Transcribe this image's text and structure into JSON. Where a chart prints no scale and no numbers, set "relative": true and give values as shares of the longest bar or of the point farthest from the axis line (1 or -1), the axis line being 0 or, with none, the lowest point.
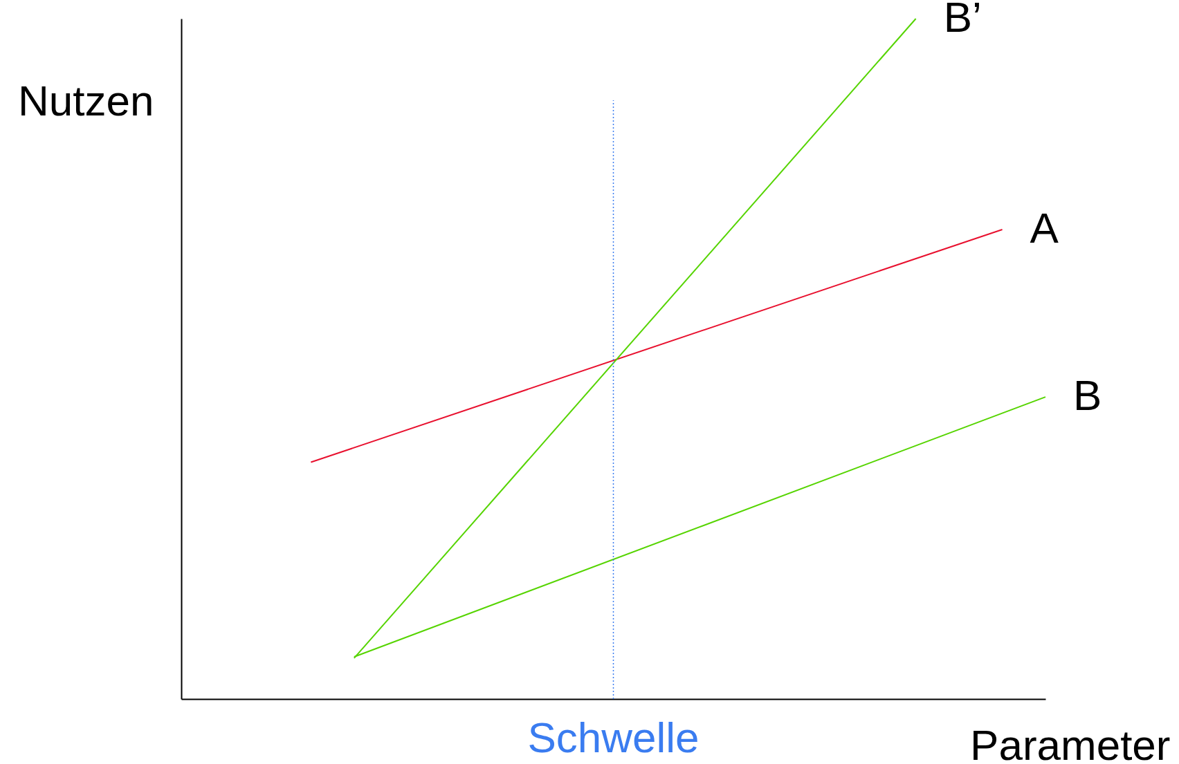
{
  "chart_data": {
    "type": "line",
    "relative": true,
    "xlabel": "Parameter",
    "ylabel": "Nutzen",
    "legend": false,
    "marker": "none",
    "line_style": "solid",
    "annotations": [
      "Schwelle"
    ],
    "categories": [
      null,
      null,
      null,
      null,
      null,
      null,
      null,
      null,
      null,
      null,
      null,
      null,
      null,
      null,
      null,
      null,
      null,
      null,
      null,
      null,
      null
    ],
    "series": [
      {
        "name": "A",
        "color": "#e8102e",
        "values": [
          null,
          null,
          null,
          0.348,
          null,
          null,
          null,
          null,
          null,
          null,
          null,
          null,
          null,
          null,
          null,
          null,
          null,
          null,
          null,
          0.69,
          null
        ]
      },
      {
        "name": "B’",
        "color": "#55d400",
        "values": [
          null,
          null,
          null,
          null,
          0.06,
          null,
          null,
          null,
          null,
          null,
          null,
          null,
          null,
          null,
          null,
          null,
          null,
          1,
          null,
          null,
          null
        ]
      },
      {
        "name": "B",
        "color": "#55d400",
        "values": [
          null,
          null,
          null,
          null,
          0.062,
          null,
          null,
          null,
          null,
          null,
          null,
          null,
          null,
          null,
          null,
          null,
          null,
          null,
          null,
          null,
          0.444
        ]
      }
    ],
    "grid": false
  }
}
